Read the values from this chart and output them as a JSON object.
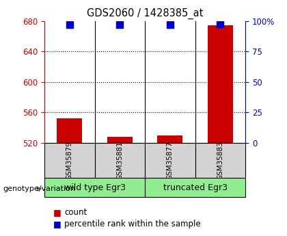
{
  "title": "GDS2060 / 1428385_at",
  "samples": [
    "GSM35879",
    "GSM35881",
    "GSM35877",
    "GSM35883"
  ],
  "group_label_text": "genotype/variation",
  "bar_values": [
    552,
    528,
    530,
    675
  ],
  "bar_baseline": 520,
  "percentile_values": [
    97,
    97,
    97,
    98
  ],
  "ylim_left": [
    520,
    680
  ],
  "ylim_right": [
    0,
    100
  ],
  "yticks_left": [
    520,
    560,
    600,
    640,
    680
  ],
  "yticks_right": [
    0,
    25,
    50,
    75,
    100
  ],
  "bar_color": "#cc0000",
  "percentile_color": "#0000cc",
  "sample_box_color": "#d3d3d3",
  "group_box_color": "#90EE90",
  "left_axis_color": "#cc0000",
  "right_axis_color": "#0000cc",
  "bar_width": 0.5,
  "percentile_marker_size": 7,
  "group_info": [
    [
      0,
      1,
      "wild type Egr3"
    ],
    [
      2,
      3,
      "truncated Egr3"
    ]
  ],
  "dotted_grid": [
    560,
    600,
    640
  ]
}
